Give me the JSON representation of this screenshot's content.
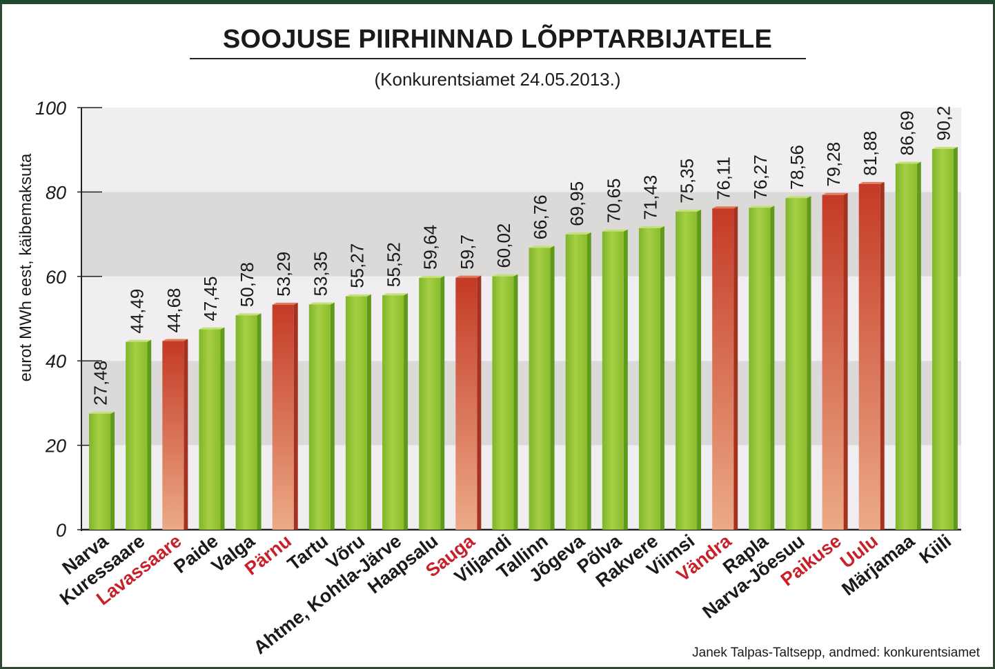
{
  "title": "SOOJUSE PIIRHINNAD LÕPPTARBIJATELE",
  "subtitle": "(Konkurentsiamet 24.05.2013.)",
  "credit": "Janek Talpas-Taltsepp, andmed: konkurentsiamet",
  "colors": {
    "green": "#8dbf2e",
    "red": "#c8452b",
    "label_red": "#c8202a",
    "label_dark": "#1a1a1a"
  },
  "chart_data": {
    "type": "bar",
    "ylabel": "eurot MWh eest, käibemaksuta",
    "ylim": [
      0,
      100
    ],
    "yticks": [
      "0",
      "20",
      "40",
      "60",
      "80",
      "100"
    ],
    "categories": [
      "Narva",
      "Kuressaare",
      "Lavassaare",
      "Paide",
      "Valga",
      "Pärnu",
      "Tartu",
      "Võru",
      "Ahtme, Kohtla-Järve",
      "Haapsalu",
      "Sauga",
      "Viljandi",
      "Tallinn",
      "Jõgeva",
      "Põlva",
      "Rakvere",
      "Viimsi",
      "Vändra",
      "Rapla",
      "Narva-Jõesuu",
      "Paikuse",
      "Uulu",
      "Märjamaa",
      "Kiili"
    ],
    "values": [
      27.48,
      44.49,
      44.68,
      47.45,
      50.78,
      53.29,
      53.35,
      55.27,
      55.52,
      59.64,
      59.7,
      60.02,
      66.76,
      69.95,
      70.65,
      71.43,
      75.35,
      76.11,
      76.27,
      78.56,
      79.28,
      81.88,
      86.69,
      90.2
    ],
    "value_labels": [
      "27,48",
      "44,49",
      "44,68",
      "47,45",
      "50,78",
      "53,29",
      "53,35",
      "55,27",
      "55,52",
      "59,64",
      "59,7",
      "60,02",
      "66,76",
      "69,95",
      "70,65",
      "71,43",
      "75,35",
      "76,11",
      "76,27",
      "78,56",
      "79,28",
      "81,88",
      "86,69",
      "90,2"
    ],
    "highlighted": [
      false,
      false,
      true,
      false,
      false,
      true,
      false,
      false,
      false,
      false,
      true,
      false,
      false,
      false,
      false,
      false,
      false,
      true,
      false,
      false,
      true,
      true,
      false,
      false
    ],
    "grid_bands": true,
    "legend": "none"
  }
}
